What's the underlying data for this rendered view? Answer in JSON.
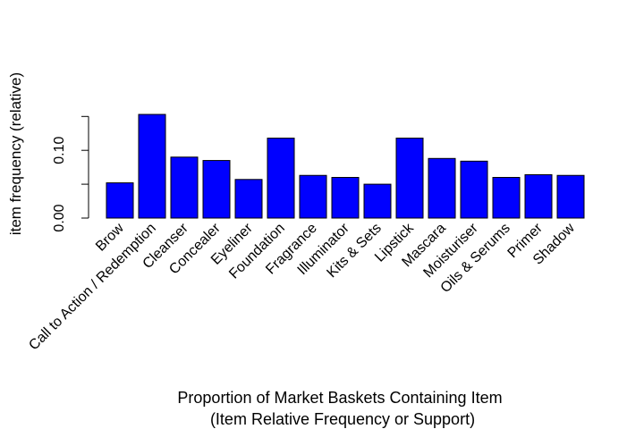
{
  "chart_data": {
    "type": "bar",
    "title": "Proportion of Market Baskets Containing Item",
    "subtitle": "(Item Relative Frequency or Support)",
    "xlabel": "",
    "ylabel": "item frequency (relative)",
    "categories": [
      "Brow",
      "Call to Action / Redemption",
      "Cleanser",
      "Concealer",
      "Eyeliner",
      "Foundation",
      "Fragrance",
      "Illuminator",
      "Kits & Sets",
      "Lipstick",
      "Mascara",
      "Moisturiser",
      "Oils & Serums",
      "Primer",
      "Shadow"
    ],
    "values": [
      0.052,
      0.153,
      0.09,
      0.085,
      0.057,
      0.118,
      0.063,
      0.06,
      0.05,
      0.118,
      0.088,
      0.084,
      0.06,
      0.064,
      0.063
    ],
    "yticks": [
      0.0,
      0.05,
      0.1,
      0.15
    ],
    "ytick_labels": [
      "0.00",
      "",
      "0.10",
      ""
    ],
    "ylim": [
      0,
      0.16
    ],
    "bar_color": "#0000ff",
    "grid": false,
    "legend": "none"
  }
}
